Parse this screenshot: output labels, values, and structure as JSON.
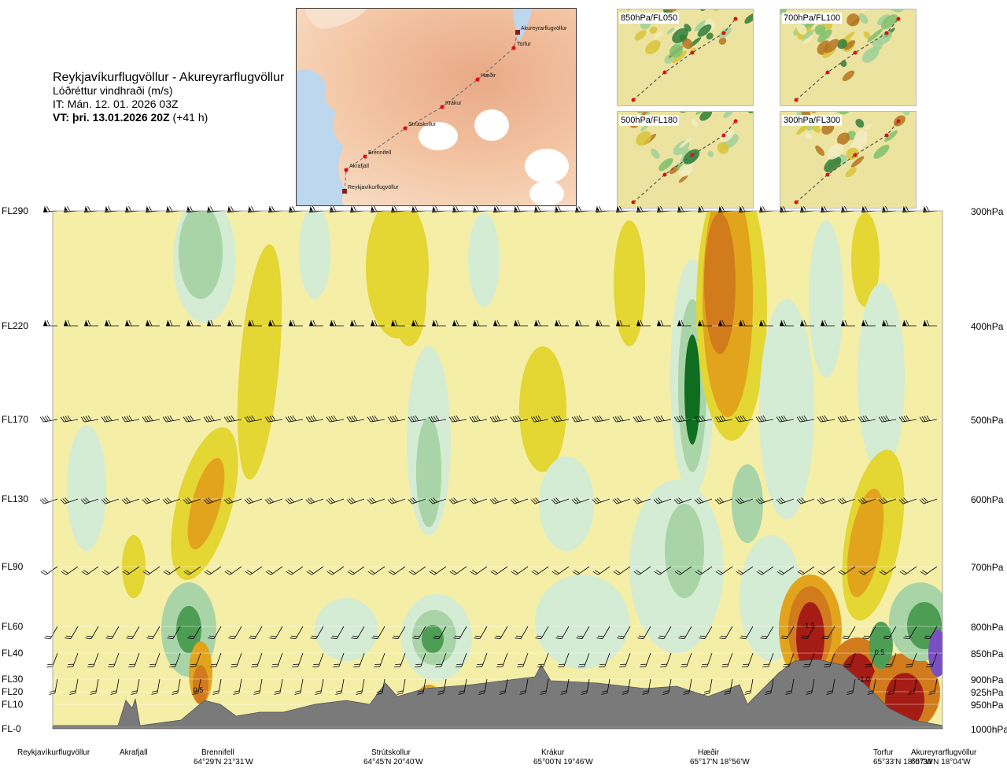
{
  "header": {
    "route": "Reykjavíkurflugvöllur - Akureyrarflugvöllur",
    "variable": "Lóðréttur vindhraði (m/s)",
    "issue_time": "IT: Mán. 12. 01. 2026 03Z",
    "valid_time": "VT: þri. 13.01.2026 20Z",
    "lead": "(+41 h)"
  },
  "map": {
    "points": [
      {
        "name": "Akureyrarflugvöllur"
      },
      {
        "name": "Torfur"
      },
      {
        "name": "Hæðir"
      },
      {
        "name": "Krákur"
      },
      {
        "name": "Strútskollur"
      },
      {
        "name": "Brennifell"
      },
      {
        "name": "Akrafjall"
      },
      {
        "name": "Reykjavíkurflugvöllur"
      }
    ]
  },
  "mini_maps": [
    {
      "label": "850hPa/FL050"
    },
    {
      "label": "700hPa/FL100"
    },
    {
      "label": "500hPa/FL180"
    },
    {
      "label": "300hPa/FL300"
    }
  ],
  "chart_data": {
    "type": "heatmap",
    "title": "Lóðréttur vindhraði (m/s)",
    "x_stations": [
      {
        "name": "Reykjavíkurflugvöllur",
        "coord": "",
        "dist": 0
      },
      {
        "name": "Akrafjall",
        "coord": "",
        "dist": 0.09
      },
      {
        "name": "Brennifell",
        "coord": "64°29'N 21°31'W",
        "dist": 0.18
      },
      {
        "name": "Strútskollur",
        "coord": "64°45'N 20°40'W",
        "dist": 0.38
      },
      {
        "name": "Krákur",
        "coord": "65°00'N 19°46'W",
        "dist": 0.57
      },
      {
        "name": "Hæðir",
        "coord": "65°17'N 18°56'W",
        "dist": 0.75
      },
      {
        "name": "Torfur",
        "coord": "65°33'N 18°07'W",
        "dist": 0.95
      },
      {
        "name": "Akureyrarflugvöllur",
        "coord": "65°39'N 18°04'W",
        "dist": 1.0
      }
    ],
    "y_levels": [
      {
        "fl": "FL290",
        "hpa": "300hPa",
        "p": 300
      },
      {
        "fl": "FL220",
        "hpa": "400hPa",
        "p": 400
      },
      {
        "fl": "FL170",
        "hpa": "500hPa",
        "p": 500
      },
      {
        "fl": "FL130",
        "hpa": "600hPa",
        "p": 600
      },
      {
        "fl": "FL90",
        "hpa": "700hPa",
        "p": 700
      },
      {
        "fl": "FL60",
        "hpa": "800hPa",
        "p": 800
      },
      {
        "fl": "FL40",
        "hpa": "850hPa",
        "p": 850
      },
      {
        "fl": "FL30",
        "hpa": "900hPa",
        "p": 900
      },
      {
        "fl": "FL20",
        "hpa": "925hPa",
        "p": 925
      },
      {
        "fl": "FL10",
        "hpa": "950hPa",
        "p": 950
      },
      {
        "fl": "FL-0",
        "hpa": "1000hPa",
        "p": 1000
      }
    ],
    "y_range_hpa": [
      300,
      1000
    ],
    "x_range": [
      0,
      1
    ],
    "annotations": [
      "0.5",
      "-1.5",
      "0.5",
      "-1.0"
    ],
    "colors": {
      "pos_weak": "#f5eea7",
      "pos_mid": "#e4d633",
      "pos_strong": "#e3a41d",
      "pos_stronger": "#d17b1d",
      "pos_strongest": "#a51c14",
      "neg_weak": "#d4ecd3",
      "neg_mid": "#a9d4a8",
      "neg_strong": "#4e9d55",
      "neg_strongest": "#0f6d1f",
      "terrain": "#7a7a7a",
      "purple": "#7a4fc4"
    }
  }
}
